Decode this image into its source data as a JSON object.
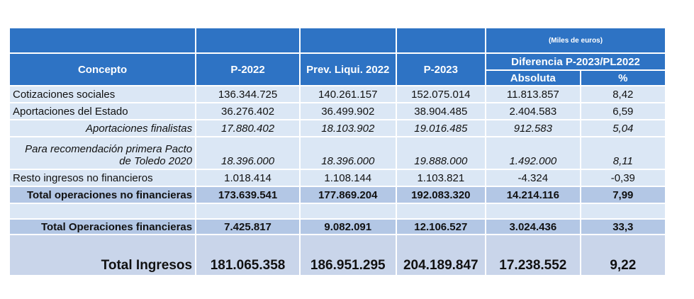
{
  "header": {
    "units": "(Miles de euros)",
    "concepto": "Concepto",
    "p2022": "P-2022",
    "prev_liqui": "Prev. Liqui. 2022",
    "p2023": "P-2023",
    "diferencia": "Diferencia  P-2023/PL2022",
    "absoluta": "Absoluta",
    "pct": "%"
  },
  "rows": [
    {
      "concepto": "Cotizaciones sociales",
      "p2022": "136.344.725",
      "prev": "140.261.157",
      "p2023": "152.075.014",
      "abs": "11.813.857",
      "pct": "8,42"
    },
    {
      "concepto": "Aportaciones del Estado",
      "p2022": "36.276.402",
      "prev": "36.499.902",
      "p2023": "38.904.485",
      "abs": "2.404.583",
      "pct": "6,59"
    },
    {
      "concepto": "Aportaciones finalistas",
      "p2022": "17.880.402",
      "prev": "18.103.902",
      "p2023": "19.016.485",
      "abs": "912.583",
      "pct": "5,04"
    },
    {
      "concepto_line1": "Para recomendación primera Pacto",
      "concepto_line2": "de Toledo 2020",
      "p2022": "18.396.000",
      "prev": "18.396.000",
      "p2023": "19.888.000",
      "abs": "1.492.000",
      "pct": "8,11"
    },
    {
      "concepto": "Resto ingresos no financieros",
      "p2022": "1.018.414",
      "prev": "1.108.144",
      "p2023": "1.103.821",
      "abs": "-4.324",
      "pct": "-0,39"
    },
    {
      "concepto": "Total operaciones no financieras",
      "p2022": "173.639.541",
      "prev": "177.869.204",
      "p2023": "192.083.320",
      "abs": "14.214.116",
      "pct": "7,99"
    },
    {
      "concepto": "Total Operaciones financieras",
      "p2022": "7.425.817",
      "prev": "9.082.091",
      "p2023": "12.106.527",
      "abs": "3.024.436",
      "pct": "33,3"
    },
    {
      "concepto": "Total Ingresos",
      "p2022": "181.065.358",
      "prev": "186.951.295",
      "p2023": "204.189.847",
      "abs": "17.238.552",
      "pct": "9,22"
    }
  ]
}
